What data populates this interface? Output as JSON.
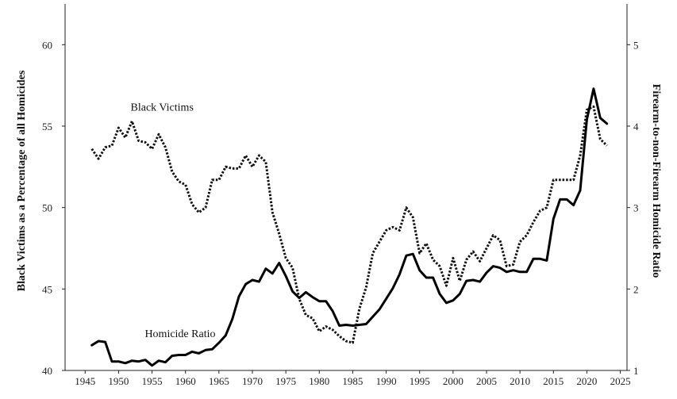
{
  "chart_data": {
    "type": "line",
    "title": "",
    "xlabel": "",
    "ylabel": "Black Victims as a Percentage of all Homicides",
    "y2label": "Firearm-to-non-Firearm Homicide Ratio",
    "xlim": [
      1942,
      2026
    ],
    "ylim": [
      40,
      62.5
    ],
    "y2lim": [
      1,
      5.5
    ],
    "x_ticks": [
      1945,
      1950,
      1955,
      1960,
      1965,
      1970,
      1975,
      1980,
      1985,
      1990,
      1995,
      2000,
      2005,
      2010,
      2015,
      2020,
      2025
    ],
    "y_ticks": [
      40,
      45,
      50,
      55,
      60
    ],
    "y2_ticks": [
      1,
      2,
      3,
      4,
      5
    ],
    "grid": false,
    "legend": "none",
    "series": [
      {
        "name": "Black Victims",
        "axis": "left",
        "style": "dotted",
        "color": "#111111",
        "x": [
          1946,
          1947,
          1948,
          1949,
          1950,
          1951,
          1952,
          1953,
          1954,
          1955,
          1956,
          1957,
          1958,
          1959,
          1960,
          1961,
          1962,
          1963,
          1964,
          1965,
          1966,
          1967,
          1968,
          1969,
          1970,
          1971,
          1972,
          1973,
          1974,
          1975,
          1976,
          1977,
          1978,
          1979,
          1980,
          1981,
          1982,
          1983,
          1984,
          1985,
          1986,
          1987,
          1988,
          1989,
          1990,
          1991,
          1992,
          1993,
          1994,
          1995,
          1996,
          1997,
          1998,
          1999,
          2000,
          2001,
          2002,
          2003,
          2004,
          2005,
          2006,
          2007,
          2008,
          2009,
          2010,
          2011,
          2012,
          2013,
          2014,
          2015,
          2016,
          2017,
          2018,
          2019,
          2020,
          2021,
          2022,
          2023
        ],
        "values": [
          53.6,
          53.0,
          53.7,
          53.8,
          54.9,
          54.3,
          55.3,
          54.1,
          54.0,
          53.6,
          54.5,
          53.7,
          52.2,
          51.6,
          51.4,
          50.2,
          49.7,
          50.0,
          51.7,
          51.7,
          52.5,
          52.4,
          52.4,
          53.2,
          52.5,
          53.2,
          52.8,
          49.7,
          48.4,
          46.9,
          46.3,
          44.4,
          43.4,
          43.2,
          42.4,
          42.7,
          42.5,
          42.1,
          41.8,
          41.7,
          43.8,
          45.1,
          47.2,
          47.9,
          48.6,
          48.8,
          48.6,
          50.0,
          49.4,
          47.2,
          47.8,
          46.8,
          46.4,
          45.2,
          46.9,
          45.5,
          46.8,
          47.3,
          46.7,
          47.5,
          48.3,
          48.0,
          46.4,
          46.5,
          47.9,
          48.3,
          49.1,
          49.8,
          50.0,
          51.7,
          51.7,
          51.7,
          51.7,
          53.2,
          56.0,
          56.2,
          54.2,
          53.8
        ]
      },
      {
        "name": "Homicide Ratio",
        "axis": "right",
        "style": "solid",
        "color": "#000000",
        "x": [
          1946,
          1947,
          1948,
          1949,
          1950,
          1951,
          1952,
          1953,
          1954,
          1955,
          1956,
          1957,
          1958,
          1959,
          1960,
          1961,
          1962,
          1963,
          1964,
          1965,
          1966,
          1967,
          1968,
          1969,
          1970,
          1971,
          1972,
          1973,
          1974,
          1975,
          1976,
          1977,
          1978,
          1979,
          1980,
          1981,
          1982,
          1983,
          1984,
          1985,
          1986,
          1987,
          1988,
          1989,
          1990,
          1991,
          1992,
          1993,
          1994,
          1995,
          1996,
          1997,
          1998,
          1999,
          2000,
          2001,
          2002,
          2003,
          2004,
          2005,
          2006,
          2007,
          2008,
          2009,
          2010,
          2011,
          2012,
          2013,
          2014,
          2015,
          2016,
          2017,
          2018,
          2019,
          2020,
          2021,
          2022,
          2023
        ],
        "values": [
          1.31,
          1.36,
          1.35,
          1.11,
          1.11,
          1.09,
          1.12,
          1.11,
          1.13,
          1.06,
          1.12,
          1.1,
          1.18,
          1.19,
          1.19,
          1.23,
          1.21,
          1.25,
          1.26,
          1.34,
          1.43,
          1.63,
          1.91,
          2.06,
          2.11,
          2.09,
          2.25,
          2.19,
          2.32,
          2.16,
          1.97,
          1.89,
          1.96,
          1.9,
          1.85,
          1.85,
          1.73,
          1.55,
          1.56,
          1.55,
          1.56,
          1.57,
          1.66,
          1.75,
          1.88,
          2.01,
          2.18,
          2.41,
          2.43,
          2.23,
          2.14,
          2.14,
          1.94,
          1.83,
          1.86,
          1.94,
          2.1,
          2.11,
          2.09,
          2.2,
          2.28,
          2.26,
          2.21,
          2.23,
          2.21,
          2.21,
          2.37,
          2.37,
          2.35,
          2.86,
          3.1,
          3.1,
          3.03,
          3.21,
          4.08,
          4.46,
          4.1,
          4.03
        ]
      }
    ],
    "annotations": [
      {
        "text": "Black Victims",
        "x": 1956.5,
        "y": 56.2,
        "axis": "left"
      },
      {
        "text": "Homicide Ratio",
        "x": 1959.2,
        "y": 42.3,
        "axis": "left"
      }
    ]
  }
}
